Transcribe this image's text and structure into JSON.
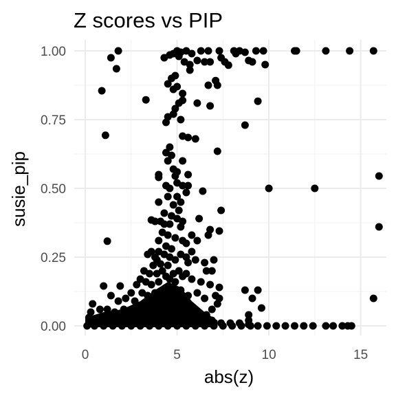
{
  "chart_data": {
    "type": "scatter",
    "title": "Z scores vs PIP",
    "xlabel": "abs(z)",
    "ylabel": "susie_pip",
    "xlim": [
      -0.6,
      16.4
    ],
    "ylim": [
      -0.035,
      1.04
    ],
    "x_ticks": [
      0,
      5,
      10,
      15
    ],
    "x_tick_labels": [
      "0",
      "5",
      "10",
      "15"
    ],
    "y_ticks": [
      0,
      0.25,
      0.5,
      0.75,
      1
    ],
    "y_tick_labels": [
      "0.00",
      "0.25",
      "0.50",
      "0.75",
      "1.00"
    ],
    "grid": true,
    "legend": "none",
    "point_color": "#000000",
    "points": [
      [
        1.8,
        1.0
      ],
      [
        1.4,
        0.975
      ],
      [
        1.7,
        0.935
      ],
      [
        0.9,
        0.855
      ],
      [
        1.1,
        0.693
      ],
      [
        1.2,
        0.308
      ],
      [
        3.3,
        0.822
      ],
      [
        4.3,
        0.975
      ],
      [
        4.6,
        0.985
      ],
      [
        4.8,
        0.99
      ],
      [
        5.0,
        1.0
      ],
      [
        5.2,
        0.995
      ],
      [
        5.5,
        1.0
      ],
      [
        5.8,
        0.99
      ],
      [
        6.3,
        1.0
      ],
      [
        6.7,
        1.0
      ],
      [
        7.3,
        1.0
      ],
      [
        8.1,
        1.0
      ],
      [
        8.2,
        0.99
      ],
      [
        8.4,
        1.0
      ],
      [
        8.7,
        0.995
      ],
      [
        9.3,
        1.0
      ],
      [
        9.7,
        1.0
      ],
      [
        11.4,
        1.0
      ],
      [
        11.5,
        1.0
      ],
      [
        13.1,
        1.0
      ],
      [
        14.4,
        1.0
      ],
      [
        15.7,
        1.0
      ],
      [
        5.1,
        0.98
      ],
      [
        5.4,
        0.96
      ],
      [
        5.7,
        0.95
      ],
      [
        6.1,
        0.965
      ],
      [
        6.5,
        0.96
      ],
      [
        6.8,
        0.96
      ],
      [
        7.4,
        0.975
      ],
      [
        7.6,
        0.96
      ],
      [
        7.8,
        0.948
      ],
      [
        8.9,
        0.965
      ],
      [
        9.1,
        0.96
      ],
      [
        9.8,
        0.95
      ],
      [
        5.7,
        0.93
      ],
      [
        4.5,
        0.88
      ],
      [
        4.7,
        0.9
      ],
      [
        4.9,
        0.91
      ],
      [
        5.0,
        0.87
      ],
      [
        4.8,
        0.86
      ],
      [
        5.3,
        0.845
      ],
      [
        5.1,
        0.81
      ],
      [
        5.3,
        0.82
      ],
      [
        4.9,
        0.79
      ],
      [
        6.1,
        0.81
      ],
      [
        6.7,
        0.875
      ],
      [
        7.1,
        0.892
      ],
      [
        7.2,
        0.875
      ],
      [
        6.8,
        0.8
      ],
      [
        9.4,
        0.817
      ],
      [
        4.4,
        0.74
      ],
      [
        4.5,
        0.76
      ],
      [
        4.8,
        0.77
      ],
      [
        5.2,
        0.75
      ],
      [
        5.3,
        0.69
      ],
      [
        5.6,
        0.685
      ],
      [
        6.0,
        0.68
      ],
      [
        8.7,
        0.73
      ],
      [
        4.4,
        0.63
      ],
      [
        4.6,
        0.65
      ],
      [
        4.5,
        0.6
      ],
      [
        4.7,
        0.62
      ],
      [
        5.3,
        0.6
      ],
      [
        4.8,
        0.57
      ],
      [
        5.0,
        0.56
      ],
      [
        4.9,
        0.545
      ],
      [
        4.0,
        0.55
      ],
      [
        4.0,
        0.54
      ],
      [
        5.6,
        0.55
      ],
      [
        7.2,
        0.635
      ],
      [
        4.4,
        0.51
      ],
      [
        4.6,
        0.5
      ],
      [
        5.0,
        0.52
      ],
      [
        5.3,
        0.51
      ],
      [
        5.6,
        0.51
      ],
      [
        5.5,
        0.485
      ],
      [
        4.5,
        0.47
      ],
      [
        5.0,
        0.47
      ],
      [
        5.2,
        0.45
      ],
      [
        4.0,
        0.45
      ],
      [
        4.8,
        0.44
      ],
      [
        5.1,
        0.42
      ],
      [
        4.3,
        0.41
      ],
      [
        6.4,
        0.49
      ],
      [
        10.0,
        0.5
      ],
      [
        12.5,
        0.5
      ],
      [
        16.0,
        0.545
      ],
      [
        4.7,
        0.4
      ],
      [
        5.0,
        0.39
      ],
      [
        5.3,
        0.38
      ],
      [
        3.6,
        0.385
      ],
      [
        3.8,
        0.38
      ],
      [
        4.1,
        0.38
      ],
      [
        4.3,
        0.37
      ],
      [
        4.6,
        0.37
      ],
      [
        5.2,
        0.36
      ],
      [
        6.2,
        0.39
      ],
      [
        7.4,
        0.42
      ],
      [
        16.0,
        0.36
      ],
      [
        4.2,
        0.34
      ],
      [
        4.5,
        0.33
      ],
      [
        4.9,
        0.32
      ],
      [
        5.3,
        0.31
      ],
      [
        4.0,
        0.31
      ],
      [
        4.4,
        0.29
      ],
      [
        4.7,
        0.28
      ],
      [
        5.5,
        0.3
      ],
      [
        5.8,
        0.33
      ],
      [
        6.1,
        0.31
      ],
      [
        6.8,
        0.35
      ],
      [
        6.7,
        0.33
      ],
      [
        7.3,
        0.345
      ],
      [
        3.4,
        0.26
      ],
      [
        3.6,
        0.27
      ],
      [
        3.8,
        0.25
      ],
      [
        4.0,
        0.27
      ],
      [
        4.3,
        0.26
      ],
      [
        4.6,
        0.25
      ],
      [
        4.9,
        0.24
      ],
      [
        5.2,
        0.26
      ],
      [
        5.5,
        0.25
      ],
      [
        5.6,
        0.23
      ],
      [
        4.1,
        0.225
      ],
      [
        4.5,
        0.22
      ],
      [
        3.9,
        0.24
      ],
      [
        3.7,
        0.22
      ],
      [
        5.8,
        0.27
      ],
      [
        6.0,
        0.24
      ],
      [
        6.5,
        0.23
      ],
      [
        6.6,
        0.2
      ],
      [
        6.9,
        0.2
      ],
      [
        7.0,
        0.24
      ],
      [
        3.2,
        0.2
      ],
      [
        3.5,
        0.19
      ],
      [
        3.9,
        0.19
      ],
      [
        4.2,
        0.2
      ],
      [
        4.4,
        0.18
      ],
      [
        4.8,
        0.19
      ],
      [
        5.1,
        0.2
      ],
      [
        5.3,
        0.18
      ],
      [
        3.0,
        0.17
      ],
      [
        2.8,
        0.15
      ],
      [
        3.3,
        0.16
      ],
      [
        3.6,
        0.15
      ],
      [
        4.0,
        0.16
      ],
      [
        4.6,
        0.17
      ],
      [
        4.9,
        0.16
      ],
      [
        5.5,
        0.19
      ],
      [
        5.8,
        0.17
      ],
      [
        6.3,
        0.16
      ],
      [
        6.8,
        0.15
      ],
      [
        7.3,
        0.14
      ],
      [
        1.0,
        0.145
      ],
      [
        1.9,
        0.145
      ],
      [
        2.5,
        0.12
      ],
      [
        3.1,
        0.12
      ],
      [
        3.4,
        0.11
      ],
      [
        3.8,
        0.12
      ],
      [
        4.3,
        0.12
      ],
      [
        4.7,
        0.11
      ],
      [
        5.2,
        0.13
      ],
      [
        5.6,
        0.11
      ],
      [
        6.1,
        0.12
      ],
      [
        6.5,
        0.1
      ],
      [
        7.1,
        0.11
      ],
      [
        7.3,
        0.1
      ],
      [
        8.7,
        0.13
      ],
      [
        9.4,
        0.13
      ],
      [
        15.7,
        0.1
      ],
      [
        1.4,
        0.11
      ],
      [
        2.2,
        0.1
      ],
      [
        0.4,
        0.08
      ],
      [
        1.8,
        0.09
      ],
      [
        2.7,
        0.09
      ],
      [
        9.1,
        0.1
      ],
      [
        7.2,
        0.08
      ],
      [
        9.6,
        0.065
      ],
      [
        8.9,
        0.04
      ],
      [
        8.9,
        0.02
      ],
      [
        6.9,
        0.06
      ],
      [
        0.3,
        0.05
      ],
      [
        0.8,
        0.06
      ],
      [
        1.2,
        0.06
      ],
      [
        1.6,
        0.05
      ],
      [
        2.1,
        0.06
      ],
      [
        2.6,
        0.05
      ],
      [
        3.1,
        0.06
      ],
      [
        3.6,
        0.05
      ],
      [
        4.1,
        0.06
      ],
      [
        4.6,
        0.05
      ],
      [
        5.1,
        0.06
      ],
      [
        5.6,
        0.05
      ],
      [
        6.1,
        0.05
      ],
      [
        6.6,
        0.04
      ],
      [
        0.2,
        0.03
      ],
      [
        0.6,
        0.02
      ],
      [
        1.1,
        0.03
      ],
      [
        1.5,
        0.02
      ],
      [
        2.0,
        0.03
      ],
      [
        2.4,
        0.02
      ],
      [
        2.9,
        0.03
      ],
      [
        3.4,
        0.02
      ],
      [
        3.9,
        0.03
      ],
      [
        4.4,
        0.02
      ],
      [
        4.9,
        0.03
      ],
      [
        5.4,
        0.02
      ],
      [
        5.9,
        0.03
      ],
      [
        6.4,
        0.02
      ],
      [
        6.9,
        0.02
      ],
      [
        7.4,
        0.01
      ],
      [
        7.9,
        0.01
      ],
      [
        8.4,
        0.01
      ],
      [
        8.9,
        0.005
      ],
      [
        9.4,
        0.0
      ],
      [
        9.9,
        0.0
      ],
      [
        10.4,
        0.0
      ],
      [
        10.9,
        0.0
      ],
      [
        11.4,
        0.0
      ],
      [
        11.9,
        0.0
      ],
      [
        12.4,
        0.0
      ],
      [
        13.1,
        0.0
      ],
      [
        13.5,
        0.0
      ],
      [
        14.0,
        0.0
      ],
      [
        14.3,
        0.0
      ],
      [
        14.5,
        0.0
      ],
      [
        0.1,
        0.0
      ],
      [
        0.5,
        0.0
      ],
      [
        1.0,
        0.0
      ],
      [
        1.5,
        0.0
      ],
      [
        2.0,
        0.0
      ],
      [
        2.5,
        0.0
      ],
      [
        3.0,
        0.0
      ],
      [
        3.5,
        0.0
      ],
      [
        4.0,
        0.0
      ],
      [
        4.5,
        0.0
      ],
      [
        5.0,
        0.0
      ],
      [
        5.5,
        0.0
      ],
      [
        6.0,
        0.0
      ],
      [
        6.5,
        0.0
      ],
      [
        7.0,
        0.0
      ],
      [
        7.5,
        0.0
      ],
      [
        8.0,
        0.0
      ],
      [
        8.5,
        0.0
      ],
      [
        9.0,
        0.0
      ]
    ]
  }
}
